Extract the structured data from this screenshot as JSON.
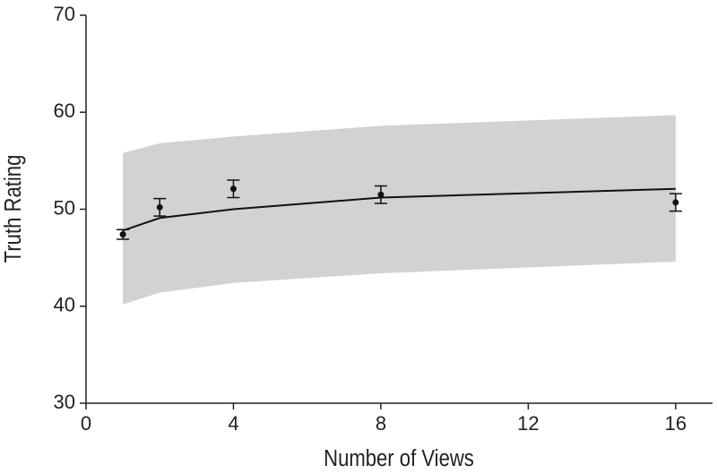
{
  "chart_data": {
    "type": "scatter",
    "xlabel": "Number of Views",
    "ylabel": "Truth Rating",
    "x": [
      1,
      2,
      4,
      8,
      16
    ],
    "values": [
      47.4,
      50.2,
      52.1,
      51.5,
      50.7
    ],
    "errors": [
      0.5,
      0.9,
      0.9,
      0.9,
      0.9
    ],
    "color": "#111111",
    "fit": {
      "x": [
        1,
        2,
        4,
        8,
        16
      ],
      "values": [
        47.8,
        49.1,
        50.0,
        51.2,
        52.1
      ],
      "color": "#111111"
    },
    "band": {
      "x": [
        1,
        2,
        4,
        8,
        16
      ],
      "lower": [
        40.2,
        41.4,
        42.4,
        43.4,
        44.6
      ],
      "upper": [
        55.8,
        56.8,
        57.5,
        58.6,
        59.7
      ],
      "color": "#d1d2d4"
    },
    "xlim": [
      0,
      17
    ],
    "ylim": [
      30,
      70
    ],
    "xticks": [
      0,
      4,
      8,
      12,
      16
    ],
    "yticks": [
      30,
      40,
      50,
      60,
      70
    ],
    "grid": false
  }
}
